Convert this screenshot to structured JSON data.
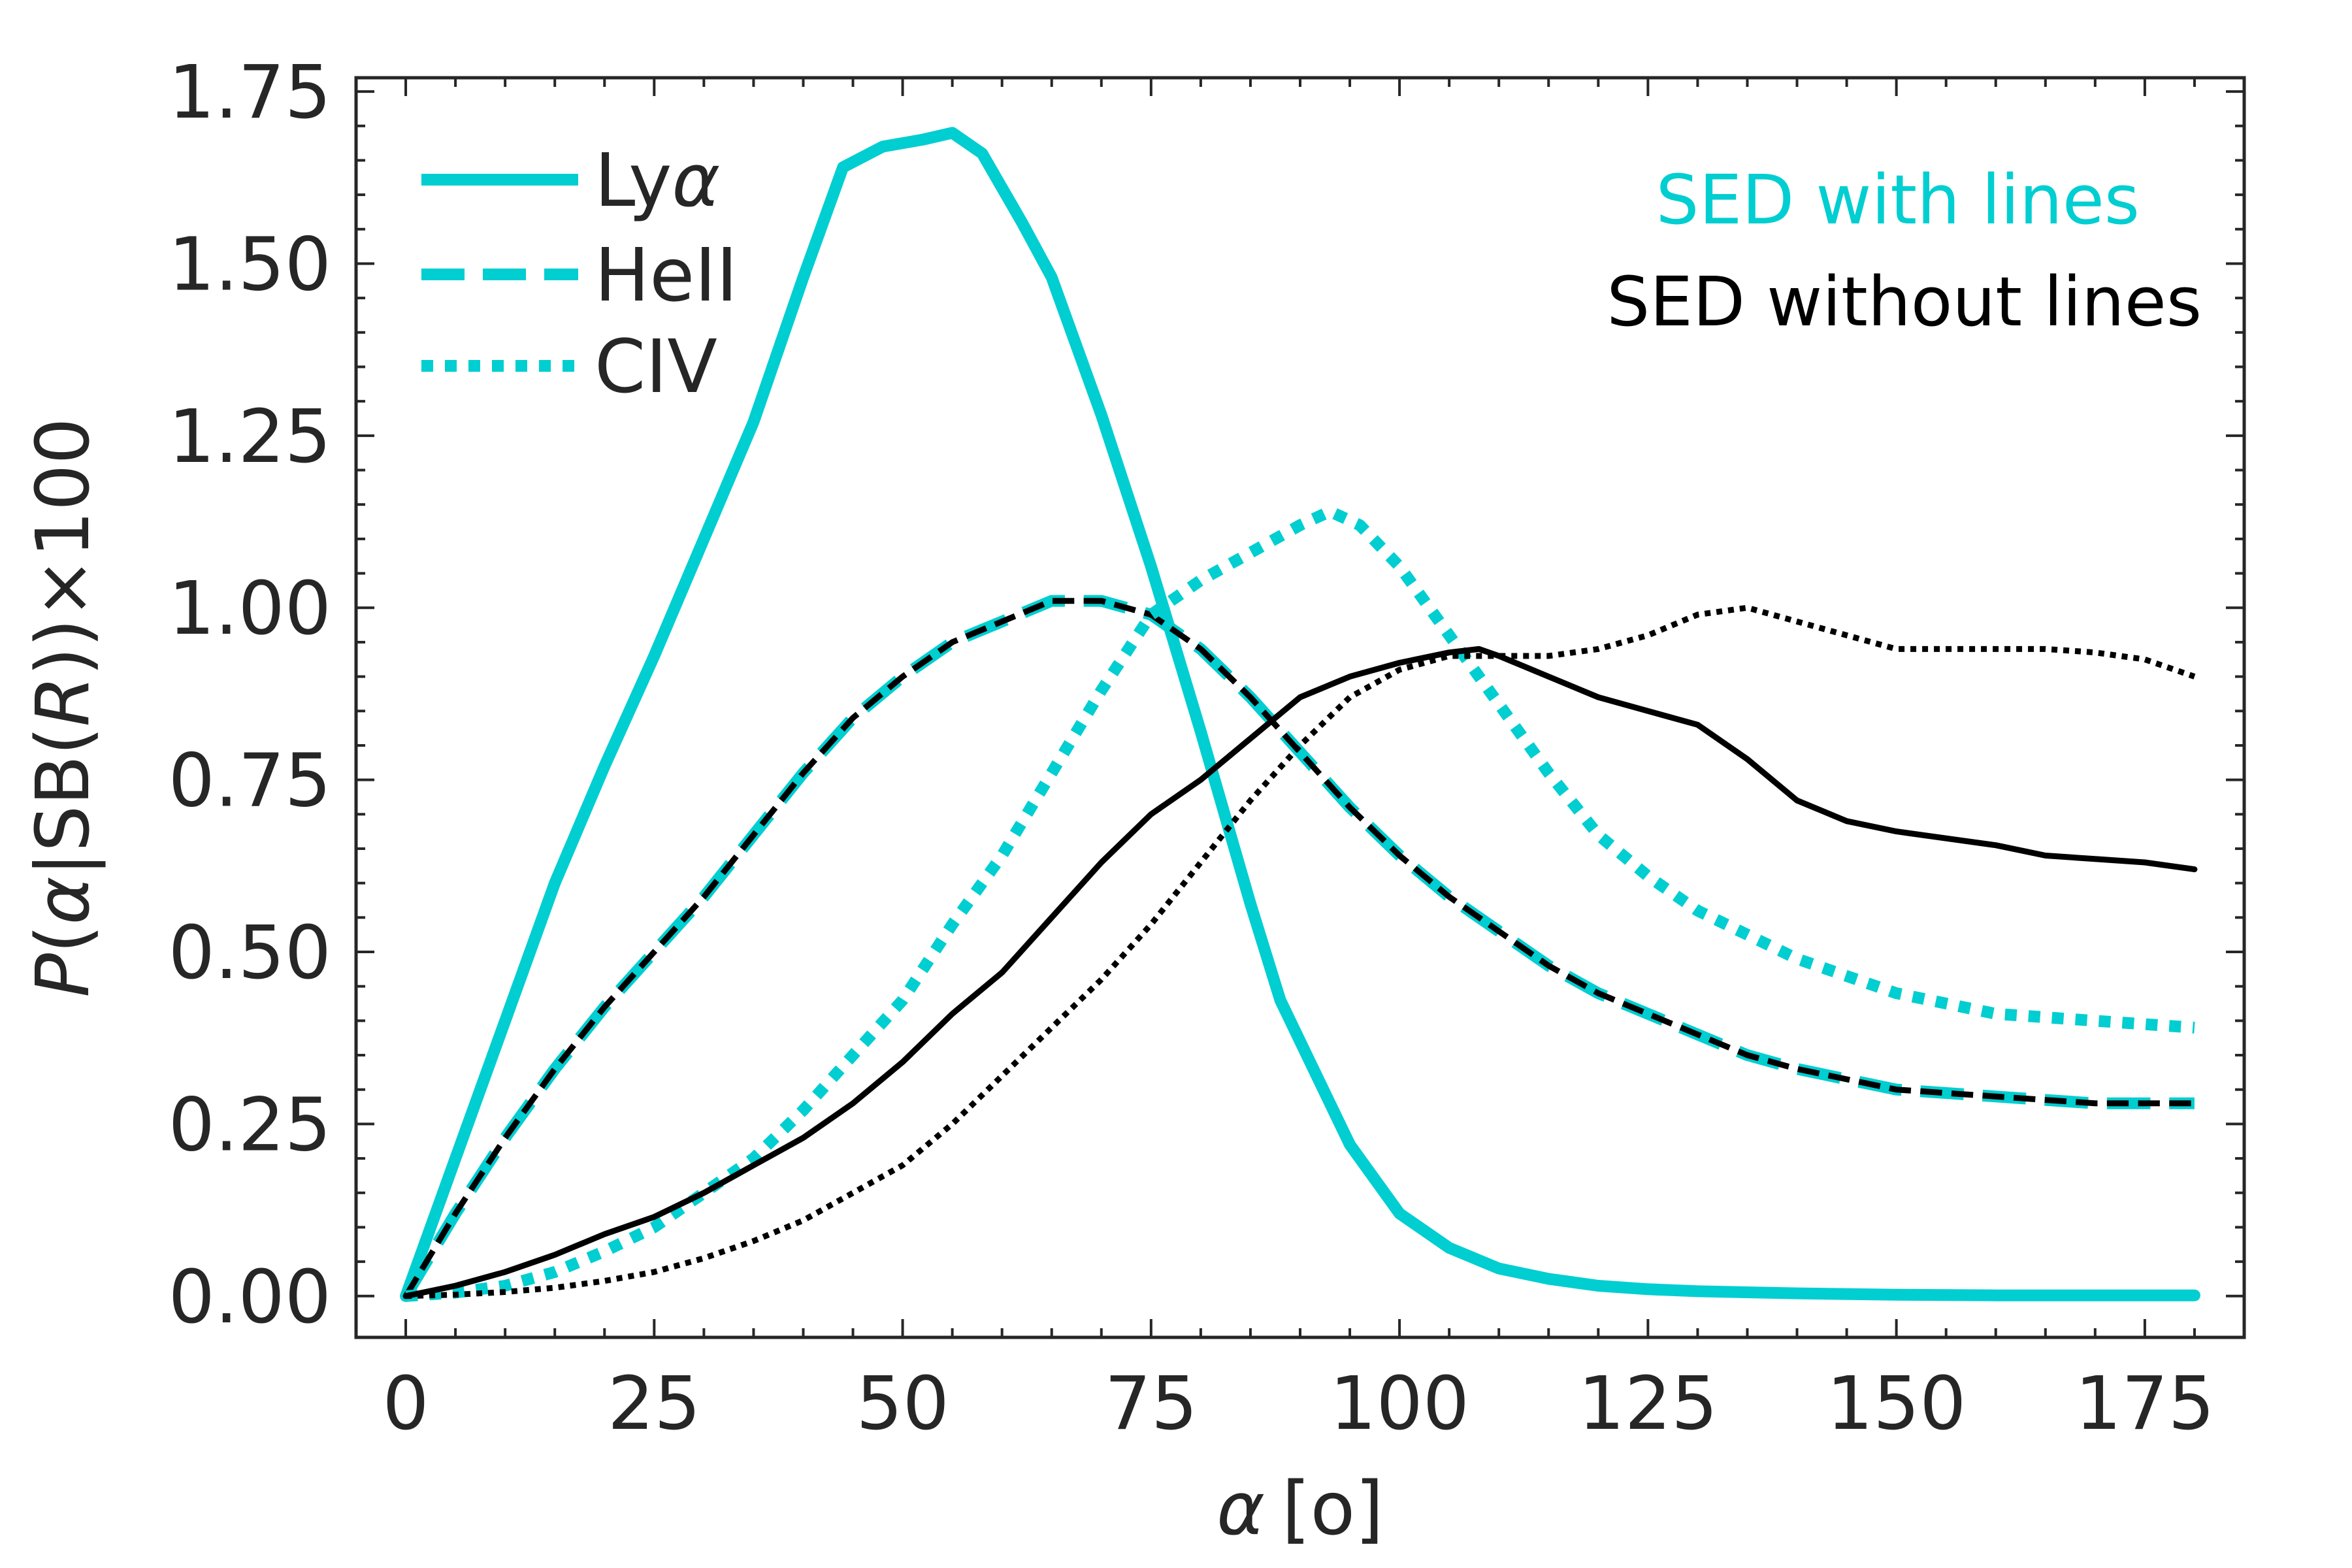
{
  "chart_data": {
    "type": "line",
    "xlabel_var": "α",
    "xlabel_unit": "[o]",
    "ylabel_parts": [
      "P",
      "(",
      "α",
      "|SB(",
      "R",
      "))×100"
    ],
    "xlim": [
      -5,
      185
    ],
    "ylim": [
      -0.06,
      1.77
    ],
    "x_ticks": [
      0,
      25,
      50,
      75,
      100,
      125,
      150,
      175
    ],
    "x_tick_labels": [
      "0",
      "25",
      "50",
      "75",
      "100",
      "125",
      "150",
      "175"
    ],
    "y_ticks": [
      0,
      0.25,
      0.5,
      0.75,
      1.0,
      1.25,
      1.5,
      1.75
    ],
    "y_tick_labels": [
      "0.00",
      "0.25",
      "0.50",
      "0.75",
      "1.00",
      "1.25",
      "1.50",
      "1.75"
    ],
    "colors": {
      "cyan": "#00CED1",
      "black": "#000000",
      "axis": "#262626"
    },
    "legend": {
      "position": "top-left",
      "entries": [
        {
          "name": "lya",
          "label_main": "Ly",
          "label_italic": "α",
          "style": "solid"
        },
        {
          "name": "heii",
          "label_main": "HeII",
          "label_italic": "",
          "style": "dashed"
        },
        {
          "name": "civ",
          "label_main": "CIV",
          "label_italic": "",
          "style": "dotted"
        }
      ]
    },
    "annotations": [
      {
        "name": "sed-with-lines",
        "text": "SED with lines",
        "color": "#00CED1"
      },
      {
        "name": "sed-without-lines",
        "text": "SED without lines",
        "color": "#000000"
      }
    ],
    "series": [
      {
        "name": "lya-with-lines",
        "line": "Lyα",
        "sed": "with lines",
        "color": "#00CED1",
        "style": "solid",
        "width": 18,
        "x": [
          0,
          5,
          10,
          15,
          20,
          25,
          30,
          35,
          40,
          44,
          48,
          52,
          55,
          58,
          62,
          65,
          70,
          75,
          80,
          85,
          88,
          90,
          95,
          100,
          105,
          110,
          115,
          120,
          125,
          130,
          140,
          150,
          160,
          170,
          180
        ],
        "y": [
          0,
          0.2,
          0.4,
          0.6,
          0.77,
          0.93,
          1.1,
          1.27,
          1.48,
          1.64,
          1.67,
          1.68,
          1.69,
          1.66,
          1.56,
          1.48,
          1.28,
          1.06,
          0.82,
          0.57,
          0.43,
          0.37,
          0.22,
          0.12,
          0.07,
          0.04,
          0.025,
          0.015,
          0.01,
          0.007,
          0.004,
          0.002,
          0.001,
          0.001,
          0.001
        ]
      },
      {
        "name": "heii-with-lines",
        "line": "HeII",
        "sed": "with lines",
        "color": "#00CED1",
        "style": "dashed",
        "width": 18,
        "x": [
          0,
          5,
          10,
          15,
          20,
          25,
          30,
          35,
          40,
          45,
          50,
          55,
          60,
          65,
          70,
          75,
          80,
          85,
          90,
          95,
          100,
          105,
          110,
          115,
          120,
          125,
          130,
          135,
          140,
          150,
          160,
          170,
          180
        ],
        "y": [
          0,
          0.12,
          0.23,
          0.33,
          0.42,
          0.5,
          0.58,
          0.67,
          0.76,
          0.84,
          0.9,
          0.95,
          0.98,
          1.01,
          1.01,
          0.99,
          0.94,
          0.87,
          0.79,
          0.71,
          0.64,
          0.58,
          0.53,
          0.48,
          0.44,
          0.41,
          0.38,
          0.35,
          0.33,
          0.3,
          0.29,
          0.28,
          0.28
        ]
      },
      {
        "name": "heii-without-lines",
        "line": "HeII",
        "sed": "without lines",
        "color": "#000000",
        "style": "dashed",
        "width": 9,
        "x": [
          0,
          5,
          10,
          15,
          20,
          25,
          30,
          35,
          40,
          45,
          50,
          55,
          60,
          65,
          70,
          75,
          80,
          85,
          90,
          95,
          100,
          105,
          110,
          115,
          120,
          125,
          130,
          135,
          140,
          150,
          160,
          170,
          180
        ],
        "y": [
          0,
          0.12,
          0.23,
          0.33,
          0.42,
          0.5,
          0.58,
          0.67,
          0.76,
          0.84,
          0.9,
          0.95,
          0.98,
          1.01,
          1.01,
          0.99,
          0.94,
          0.87,
          0.79,
          0.71,
          0.64,
          0.58,
          0.53,
          0.48,
          0.44,
          0.41,
          0.38,
          0.35,
          0.33,
          0.3,
          0.29,
          0.28,
          0.28
        ]
      },
      {
        "name": "civ-with-lines",
        "line": "CIV",
        "sed": "with lines",
        "color": "#00CED1",
        "style": "dotted",
        "width": 18,
        "x": [
          0,
          5,
          10,
          15,
          20,
          25,
          30,
          35,
          40,
          45,
          50,
          55,
          60,
          65,
          70,
          75,
          80,
          85,
          90,
          93,
          96,
          100,
          105,
          110,
          115,
          120,
          125,
          130,
          140,
          150,
          160,
          170,
          180
        ],
        "y": [
          0,
          0.005,
          0.015,
          0.035,
          0.065,
          0.1,
          0.15,
          0.2,
          0.27,
          0.35,
          0.43,
          0.54,
          0.64,
          0.76,
          0.88,
          0.99,
          1.04,
          1.08,
          1.12,
          1.14,
          1.12,
          1.06,
          0.96,
          0.86,
          0.76,
          0.67,
          0.61,
          0.56,
          0.49,
          0.44,
          0.41,
          0.4,
          0.39
        ]
      },
      {
        "name": "lya-without-lines",
        "line": "Lyα",
        "sed": "without lines",
        "color": "#000000",
        "style": "solid",
        "width": 9,
        "x": [
          0,
          5,
          10,
          15,
          20,
          25,
          30,
          35,
          40,
          45,
          50,
          55,
          60,
          65,
          70,
          75,
          80,
          85,
          90,
          95,
          100,
          105,
          108,
          110,
          115,
          120,
          125,
          130,
          135,
          140,
          145,
          150,
          155,
          160,
          165,
          170,
          175,
          180
        ],
        "y": [
          0,
          0.015,
          0.035,
          0.06,
          0.09,
          0.115,
          0.15,
          0.19,
          0.23,
          0.28,
          0.34,
          0.41,
          0.47,
          0.55,
          0.63,
          0.7,
          0.75,
          0.81,
          0.87,
          0.9,
          0.92,
          0.935,
          0.94,
          0.93,
          0.9,
          0.87,
          0.85,
          0.83,
          0.78,
          0.72,
          0.69,
          0.675,
          0.665,
          0.655,
          0.64,
          0.635,
          0.63,
          0.62
        ]
      },
      {
        "name": "civ-without-lines",
        "line": "CIV",
        "sed": "without lines",
        "color": "#000000",
        "style": "dotted",
        "width": 9,
        "x": [
          0,
          5,
          10,
          15,
          20,
          25,
          30,
          35,
          40,
          45,
          50,
          55,
          60,
          65,
          70,
          75,
          80,
          85,
          90,
          95,
          100,
          105,
          110,
          115,
          120,
          125,
          130,
          135,
          140,
          145,
          150,
          155,
          160,
          165,
          170,
          175,
          180
        ],
        "y": [
          0,
          0.002,
          0.006,
          0.012,
          0.022,
          0.035,
          0.055,
          0.08,
          0.11,
          0.15,
          0.19,
          0.25,
          0.32,
          0.39,
          0.46,
          0.54,
          0.63,
          0.72,
          0.8,
          0.87,
          0.91,
          0.93,
          0.93,
          0.93,
          0.94,
          0.96,
          0.99,
          1.0,
          0.98,
          0.96,
          0.94,
          0.94,
          0.94,
          0.94,
          0.935,
          0.925,
          0.9
        ]
      }
    ]
  }
}
